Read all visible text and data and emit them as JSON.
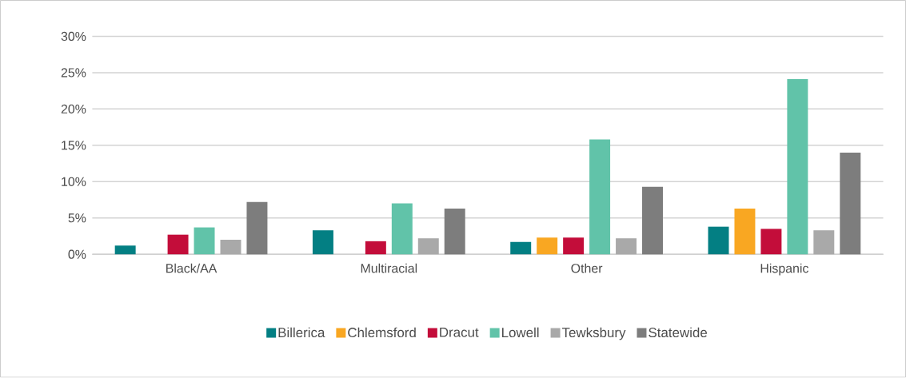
{
  "chart_data": {
    "type": "bar",
    "categories": [
      "Black/AA",
      "Multiracial",
      "Other",
      "Hispanic"
    ],
    "series": [
      {
        "name": "Billerica",
        "color": "#037f83",
        "values": [
          1.2,
          3.3,
          1.7,
          3.8
        ]
      },
      {
        "name": "Chlemsford",
        "color": "#f9a722",
        "values": [
          null,
          null,
          2.3,
          6.3
        ]
      },
      {
        "name": "Dracut",
        "color": "#c30d3a",
        "values": [
          2.7,
          1.8,
          2.3,
          3.5
        ]
      },
      {
        "name": "Lowell",
        "color": "#61c3a9",
        "values": [
          3.7,
          7.0,
          15.8,
          24.1
        ]
      },
      {
        "name": "Tewksbury",
        "color": "#a9a9a9",
        "values": [
          2.0,
          2.2,
          2.2,
          3.3
        ]
      },
      {
        "name": "Statewide",
        "color": "#7d7d7d",
        "values": [
          7.2,
          6.3,
          9.3,
          14.0
        ]
      }
    ],
    "ylim": [
      0,
      30
    ],
    "yticks": [
      {
        "value": 0,
        "label": "0%"
      },
      {
        "value": 5,
        "label": "5%"
      },
      {
        "value": 10,
        "label": "10%"
      },
      {
        "value": 15,
        "label": "15%"
      },
      {
        "value": 20,
        "label": "20%"
      },
      {
        "value": 25,
        "label": "25%"
      },
      {
        "value": 30,
        "label": "30%"
      }
    ],
    "grid": "y",
    "legend": "bottom"
  }
}
